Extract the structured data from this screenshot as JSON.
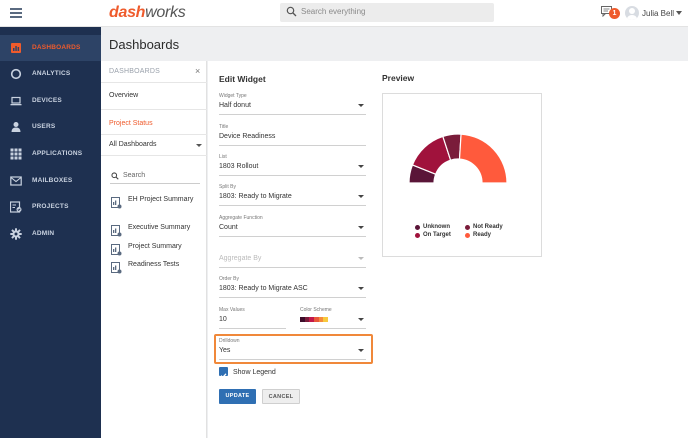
{
  "app": {
    "logo_part1": "dash",
    "logo_part2": "works"
  },
  "search": {
    "placeholder": "Search everything"
  },
  "notifications": {
    "count": "1"
  },
  "user": {
    "name": "Julia Bell"
  },
  "sidebar": {
    "items": [
      {
        "label": "DASHBOARDS",
        "active": true
      },
      {
        "label": "ANALYTICS"
      },
      {
        "label": "DEVICES"
      },
      {
        "label": "USERS"
      },
      {
        "label": "APPLICATIONS"
      },
      {
        "label": "MAILBOXES"
      },
      {
        "label": "PROJECTS"
      },
      {
        "label": "ADMIN"
      }
    ]
  },
  "page": {
    "title": "Dashboards"
  },
  "left_panel": {
    "heading": "DASHBOARDS",
    "close_glyph": "×",
    "overview": "Overview",
    "project_status": "Project Status",
    "all_dashboards": "All Dashboards",
    "search_placeholder": "Search",
    "dashboards": [
      "EH Project Summary",
      "Executive Summary",
      "Project Summary",
      "Readiness Tests"
    ]
  },
  "edit_widget": {
    "title": "Edit Widget",
    "widget_type": {
      "label": "Widget Type",
      "value": "Half donut"
    },
    "title_field": {
      "label": "Title",
      "value": "Device Readiness"
    },
    "list": {
      "label": "List",
      "value": "1803 Rollout"
    },
    "split_by": {
      "label": "Split By",
      "value": "1803: Ready to Migrate"
    },
    "aggregate_function": {
      "label": "Aggregate Function",
      "value": "Count"
    },
    "aggregate_by": {
      "placeholder": "Aggregate By"
    },
    "order_by": {
      "label": "Order By",
      "value": "1803: Ready to Migrate ASC"
    },
    "max_values": {
      "label": "Max Values",
      "value": "10"
    },
    "color_scheme": {
      "label": "Color Scheme"
    },
    "drilldown": {
      "label": "Drilldown",
      "value": "Yes"
    },
    "show_legend": "Show Legend",
    "update_label": "UPDATE",
    "cancel_label": "CANCEL"
  },
  "preview": {
    "title": "Preview"
  },
  "chart_data": {
    "type": "pie",
    "subtype": "half-donut",
    "categories": [
      "Unknown",
      "On Target",
      "Not Ready",
      "Ready"
    ],
    "values": [
      12,
      28,
      12,
      48
    ],
    "colors": [
      "#5a1538",
      "#a0123c",
      "#7a1c3a",
      "#ff5a3c"
    ],
    "legend": [
      "Unknown",
      "Not Ready",
      "On Target",
      "Ready"
    ],
    "legend_position": "bottom"
  },
  "colors": {
    "accent": "#ef5b2c",
    "sidebar": "#1e3050",
    "primary_button": "#2f6fb3",
    "highlight": "#f0883a",
    "color_scheme_swatch": [
      "#3d0d2a",
      "#7a1c3a",
      "#c2184a",
      "#e8573a",
      "#f58b3a",
      "#f7c93e"
    ]
  }
}
